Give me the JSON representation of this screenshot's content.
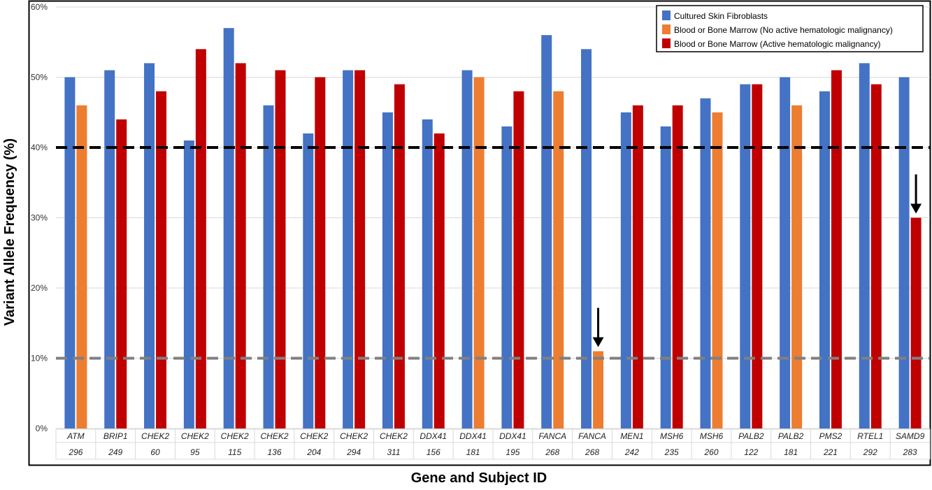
{
  "chart_data": {
    "type": "bar",
    "ylabel": "Variant Allele Frequency (%)",
    "xlabel": "Gene and Subject ID",
    "ylim": [
      0,
      60
    ],
    "yticks": [
      "0%",
      "10%",
      "20%",
      "30%",
      "40%",
      "50%",
      "60%"
    ],
    "grid": true,
    "legend_position": "top-right",
    "categories": [
      {
        "gene": "ATM",
        "id": "296",
        "cell": "Cultured Skin Fibroblasts",
        "blood": 46,
        "blood_type": "no_active",
        "skin": 50
      },
      {
        "gene": "BRIP1",
        "id": "249",
        "skin": 51,
        "blood": 44,
        "blood_type": "active"
      },
      {
        "gene": "CHEK2",
        "id": "60",
        "skin": 52,
        "blood": 48,
        "blood_type": "active"
      },
      {
        "gene": "CHEK2",
        "id": "95",
        "skin": 41,
        "blood": 54,
        "blood_type": "active"
      },
      {
        "gene": "CHEK2",
        "id": "115",
        "skin": 57,
        "blood": 52,
        "blood_type": "active"
      },
      {
        "gene": "CHEK2",
        "id": "136",
        "skin": 46,
        "blood": 51,
        "blood_type": "active"
      },
      {
        "gene": "CHEK2",
        "id": "204",
        "skin": 42,
        "blood": 50,
        "blood_type": "active"
      },
      {
        "gene": "CHEK2",
        "id": "294",
        "skin": 51,
        "blood": 51,
        "blood_type": "active"
      },
      {
        "gene": "CHEK2",
        "id": "311",
        "skin": 45,
        "blood": 49,
        "blood_type": "active"
      },
      {
        "gene": "DDX41",
        "id": "156",
        "skin": 44,
        "blood": 42,
        "blood_type": "active"
      },
      {
        "gene": "DDX41",
        "id": "181",
        "skin": 51,
        "blood": 50,
        "blood_type": "no_active"
      },
      {
        "gene": "DDX41",
        "id": "195",
        "skin": 43,
        "blood": 48,
        "blood_type": "active"
      },
      {
        "gene": "FANCA",
        "id": "268",
        "skin": 56,
        "blood": 48,
        "blood_type": "no_active"
      },
      {
        "gene": "FANCA",
        "id": "268",
        "skin": 54,
        "blood": 11,
        "blood_type": "no_active"
      },
      {
        "gene": "MEN1",
        "id": "242",
        "skin": 45,
        "blood": 46,
        "blood_type": "active"
      },
      {
        "gene": "MSH6",
        "id": "235",
        "skin": 43,
        "blood": 46,
        "blood_type": "active"
      },
      {
        "gene": "MSH6",
        "id": "260",
        "skin": 47,
        "blood": 45,
        "blood_type": "no_active"
      },
      {
        "gene": "PALB2",
        "id": "122",
        "skin": 49,
        "blood": 49,
        "blood_type": "active"
      },
      {
        "gene": "PALB2",
        "id": "181",
        "skin": 50,
        "blood": 46,
        "blood_type": "no_active"
      },
      {
        "gene": "PMS2",
        "id": "221",
        "skin": 48,
        "blood": 51,
        "blood_type": "active"
      },
      {
        "gene": "RTEL1",
        "id": "292",
        "skin": 52,
        "blood": 49,
        "blood_type": "active"
      },
      {
        "gene": "SAMD9",
        "id": "283",
        "skin": 50,
        "blood": 30,
        "blood_type": "active"
      }
    ],
    "series": [
      {
        "key": "skin",
        "name": "Cultured Skin Fibroblasts",
        "color": "#4472C4"
      },
      {
        "key": "no_active",
        "name": "Blood or Bone Marrow (No active hematologic malignancy)",
        "color": "#ED7D31"
      },
      {
        "key": "active",
        "name": "Blood or Bone Marrow (Active hematologic malignancy)",
        "color": "#C00000"
      }
    ],
    "reference_lines": [
      {
        "value": 40,
        "color": "#000000",
        "style": "dashed"
      },
      {
        "value": 10,
        "color": "#808080",
        "style": "dashed"
      }
    ],
    "annotations": [
      {
        "type": "arrow",
        "category_index": 13,
        "points_to": 11
      },
      {
        "type": "arrow",
        "category_index": 21,
        "points_to": 30
      }
    ]
  }
}
